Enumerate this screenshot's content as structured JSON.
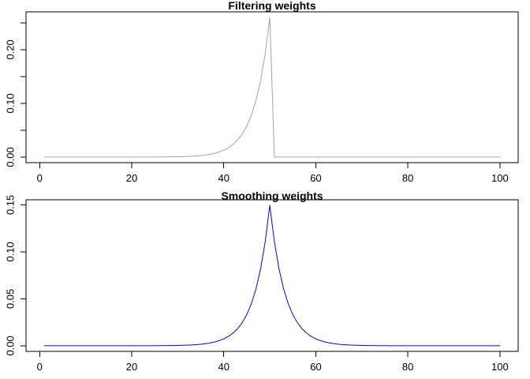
{
  "figure": {
    "background": "#ffffff",
    "text_color": "#000000",
    "box_color": "#000000"
  },
  "chart_data": [
    {
      "type": "line",
      "title": "Filtering weights",
      "xlabel": "",
      "ylabel": "",
      "legend": "none",
      "grid": false,
      "color": "#a3a3a3",
      "x_start": 1,
      "x_step": 1,
      "xlim": [
        -2.96,
        103.96
      ],
      "ylim": [
        -0.0104,
        0.2704
      ],
      "xticks": {
        "values": [
          0,
          20,
          40,
          60,
          80,
          100
        ],
        "labels": [
          "0",
          "20",
          "40",
          "60",
          "80",
          "100"
        ]
      },
      "yticks": {
        "values": [
          0,
          0.05,
          0.1,
          0.15,
          0.2,
          0.25
        ],
        "labels": [
          "0.00",
          "",
          "0.10",
          "",
          "0.20",
          ""
        ]
      },
      "peak": {
        "x": 50,
        "y": 0.26
      },
      "values": [
        0,
        0,
        0,
        0,
        0,
        0,
        1e-06,
        1e-06,
        1e-06,
        2e-06,
        2e-06,
        3e-06,
        4e-06,
        5e-06,
        7e-06,
        9e-06,
        1.3e-05,
        1.7e-05,
        2.3e-05,
        3.1e-05,
        4.2e-05,
        5.7e-05,
        7.7e-05,
        0.000104,
        0.00014,
        0.000189,
        0.000255,
        0.000345,
        0.000466,
        0.00063,
        0.000852,
        0.001151,
        0.001556,
        0.002102,
        0.002841,
        0.003839,
        0.005188,
        0.007011,
        0.009474,
        0.012802,
        0.017301,
        0.023379,
        0.031593,
        0.042694,
        0.057694,
        0.077965,
        0.105358,
        0.142376,
        0.1924,
        0.26,
        0,
        0,
        0,
        0,
        0,
        0,
        0,
        0,
        0,
        0,
        0,
        0,
        0,
        0,
        0,
        0,
        0,
        0,
        0,
        0,
        0,
        0,
        0,
        0,
        0,
        0,
        0,
        0,
        0,
        0,
        0,
        0,
        0,
        0,
        0,
        0,
        0,
        0,
        0,
        0,
        0,
        0,
        0,
        0,
        0,
        0,
        0,
        0,
        0,
        0
      ]
    },
    {
      "type": "line",
      "title": "Smoothing weights",
      "xlabel": "",
      "ylabel": "",
      "legend": "none",
      "grid": false,
      "color": "#0000ff",
      "x_start": 1,
      "x_step": 1,
      "xlim": [
        -2.96,
        103.96
      ],
      "ylim": [
        -0.005976,
        0.155376
      ],
      "xticks": {
        "values": [
          0,
          20,
          40,
          60,
          80,
          100
        ],
        "labels": [
          "0",
          "20",
          "40",
          "60",
          "80",
          "100"
        ]
      },
      "yticks": {
        "values": [
          0,
          0.05,
          0.1,
          0.15
        ],
        "labels": [
          "0.00",
          "0.05",
          "0.10",
          "0.15"
        ]
      },
      "peak": {
        "x": 50,
        "y": 0.149425
      },
      "values": [
        0,
        0,
        0,
        0,
        0,
        0,
        0,
        0,
        1e-06,
        1e-06,
        1e-06,
        2e-06,
        2e-06,
        3e-06,
        4e-06,
        5e-06,
        7e-06,
        1e-05,
        1.3e-05,
        1.8e-05,
        2.4e-05,
        3.3e-05,
        4.4e-05,
        6e-05,
        8e-05,
        0.000109,
        0.000147,
        0.000198,
        0.000268,
        0.000362,
        0.00049,
        0.000662,
        0.000894,
        0.001208,
        0.001633,
        0.002206,
        0.002981,
        0.004029,
        0.005445,
        0.007358,
        0.009943,
        0.013436,
        0.018157,
        0.024537,
        0.033158,
        0.044808,
        0.060551,
        0.081825,
        0.110575,
        0.149425,
        0.110575,
        0.081825,
        0.060551,
        0.044808,
        0.033158,
        0.024537,
        0.018157,
        0.013436,
        0.009943,
        0.007358,
        0.005445,
        0.004029,
        0.002981,
        0.002206,
        0.001633,
        0.001208,
        0.000894,
        0.000662,
        0.00049,
        0.000362,
        0.000268,
        0.000198,
        0.000147,
        0.000109,
        8e-05,
        6e-05,
        4.4e-05,
        3.3e-05,
        2.4e-05,
        1.8e-05,
        1.3e-05,
        1e-05,
        7e-06,
        5e-06,
        4e-06,
        3e-06,
        2e-06,
        2e-06,
        1e-06,
        1e-06,
        1e-06,
        0,
        0,
        0,
        0,
        0,
        0,
        0,
        0,
        0
      ]
    }
  ]
}
